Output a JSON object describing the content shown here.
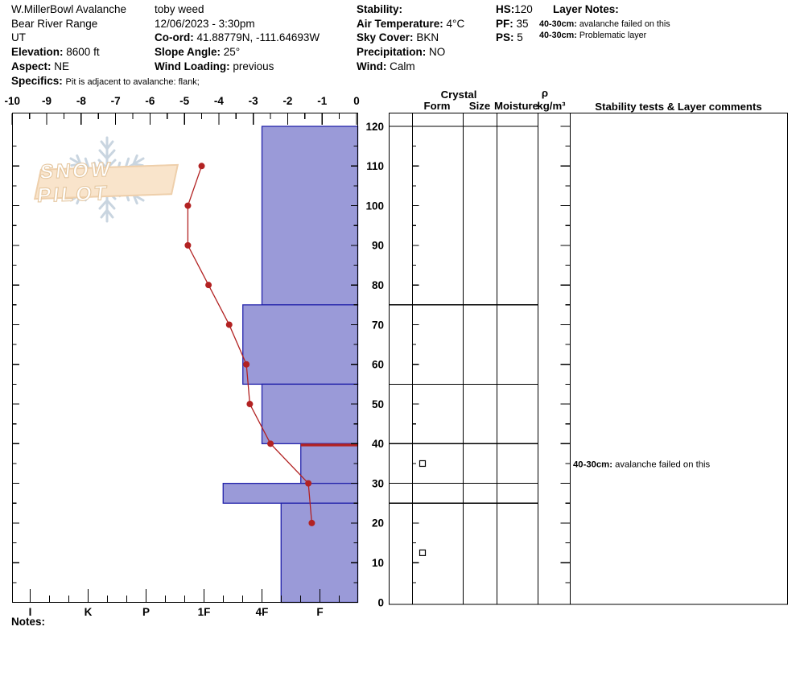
{
  "header": {
    "pit_name": "W.MillerBowl Avalanche",
    "range": "Bear River Range",
    "state": "UT",
    "elevation_label": "Elevation:",
    "elevation": "8600 ft",
    "aspect_label": "Aspect:",
    "aspect": "NE",
    "specifics_label": "Specifics:",
    "specifics": "Pit is adjacent to avalanche: flank;",
    "observer": "toby weed",
    "datetime": "12/06/2023 - 3:30pm",
    "coord_label": "Co-ord:",
    "coord": "41.88779N, -111.64693W",
    "slope_angle_label": "Slope Angle:",
    "slope_angle": "25°",
    "wind_loading_label": "Wind Loading:",
    "wind_loading": "previous",
    "stability_label": "Stability:",
    "stability": "",
    "air_temp_label": "Air Temperature:",
    "air_temp": "4°C",
    "sky_label": "Sky Cover:",
    "sky": "BKN",
    "precip_label": "Precipitation:",
    "precip": "NO",
    "wind_label": "Wind:",
    "wind": "Calm",
    "hs_label": "HS:",
    "hs": "120",
    "pf_label": "PF:",
    "pf": "35",
    "ps_label": "PS:",
    "ps": "5",
    "layer_notes_label": "Layer Notes:",
    "layer_notes": [
      {
        "range": "40-30cm:",
        "text": " avalanche failed on this"
      },
      {
        "range": "40-30cm:",
        "text": " Problematic layer"
      }
    ]
  },
  "watermark": {
    "text": "SNOW PILOT"
  },
  "notes_label": "Notes:",
  "chart_data": {
    "type": "snow-profile",
    "height_axis": {
      "unit": "cm",
      "min": 0,
      "max": 120,
      "major_tick": 10,
      "minor_tick": 5,
      "tick_labels": [
        0,
        10,
        20,
        30,
        40,
        50,
        60,
        70,
        80,
        90,
        100,
        110,
        120
      ]
    },
    "temperature_axis": {
      "unit": "°C",
      "min": -10,
      "max": 0,
      "major_tick": 1,
      "minor_tick": 0.5,
      "tick_labels": [
        -10,
        -9,
        -8,
        -7,
        -6,
        -5,
        -4,
        -3,
        -2,
        -1,
        0
      ]
    },
    "hardness_axis": {
      "categories": [
        "I",
        "K",
        "P",
        "1F",
        "4F",
        "F"
      ],
      "minor_divisions": 3,
      "note": "hardness decreases left to right"
    },
    "temperature_profile": {
      "heights_cm": [
        110,
        100,
        90,
        80,
        70,
        60,
        50,
        40,
        30,
        20
      ],
      "temps_c": [
        -4.5,
        -4.9,
        -4.9,
        -4.3,
        -3.7,
        -3.2,
        -3.1,
        -2.5,
        -1.4,
        -1.3
      ],
      "color": "#b22222"
    },
    "layers": [
      {
        "top_cm": 120,
        "bottom_cm": 75,
        "hardness": "4F",
        "hardness_num": 2.0,
        "failure_plane": false
      },
      {
        "top_cm": 75,
        "bottom_cm": 55,
        "hardness": "4F+",
        "hardness_num": 2.33,
        "failure_plane": false
      },
      {
        "top_cm": 55,
        "bottom_cm": 40,
        "hardness": "4F",
        "hardness_num": 2.0,
        "failure_plane": false
      },
      {
        "top_cm": 40,
        "bottom_cm": 30,
        "hardness": "F+",
        "hardness_num": 1.33,
        "failure_plane": true
      },
      {
        "top_cm": 30,
        "bottom_cm": 25,
        "hardness": "1F-",
        "hardness_num": 2.67,
        "failure_plane": false
      },
      {
        "top_cm": 25,
        "bottom_cm": 0,
        "hardness": "4F-",
        "hardness_num": 1.67,
        "failure_plane": false
      }
    ],
    "colors": {
      "bar_fill": "#9a9ad8",
      "bar_border": "#2222aa",
      "failure_line": "#b22222",
      "grid": "#000000"
    }
  },
  "right_panel": {
    "crystal_header": "Crystal",
    "form_header": "Form",
    "size_header": "Size",
    "moisture_header": "Moisture",
    "rho_symbol": "ρ",
    "rho_units": "kg/m³",
    "comments_header": "Stability tests & Layer comments",
    "form_symbols": [
      {
        "height_cm": 35,
        "symbol": "facets-square"
      },
      {
        "height_cm": 12.5,
        "symbol": "facets-square"
      }
    ],
    "comments": [
      {
        "height_cm": 35,
        "range": "40-30cm:",
        "text": " avalanche failed on this"
      }
    ]
  }
}
